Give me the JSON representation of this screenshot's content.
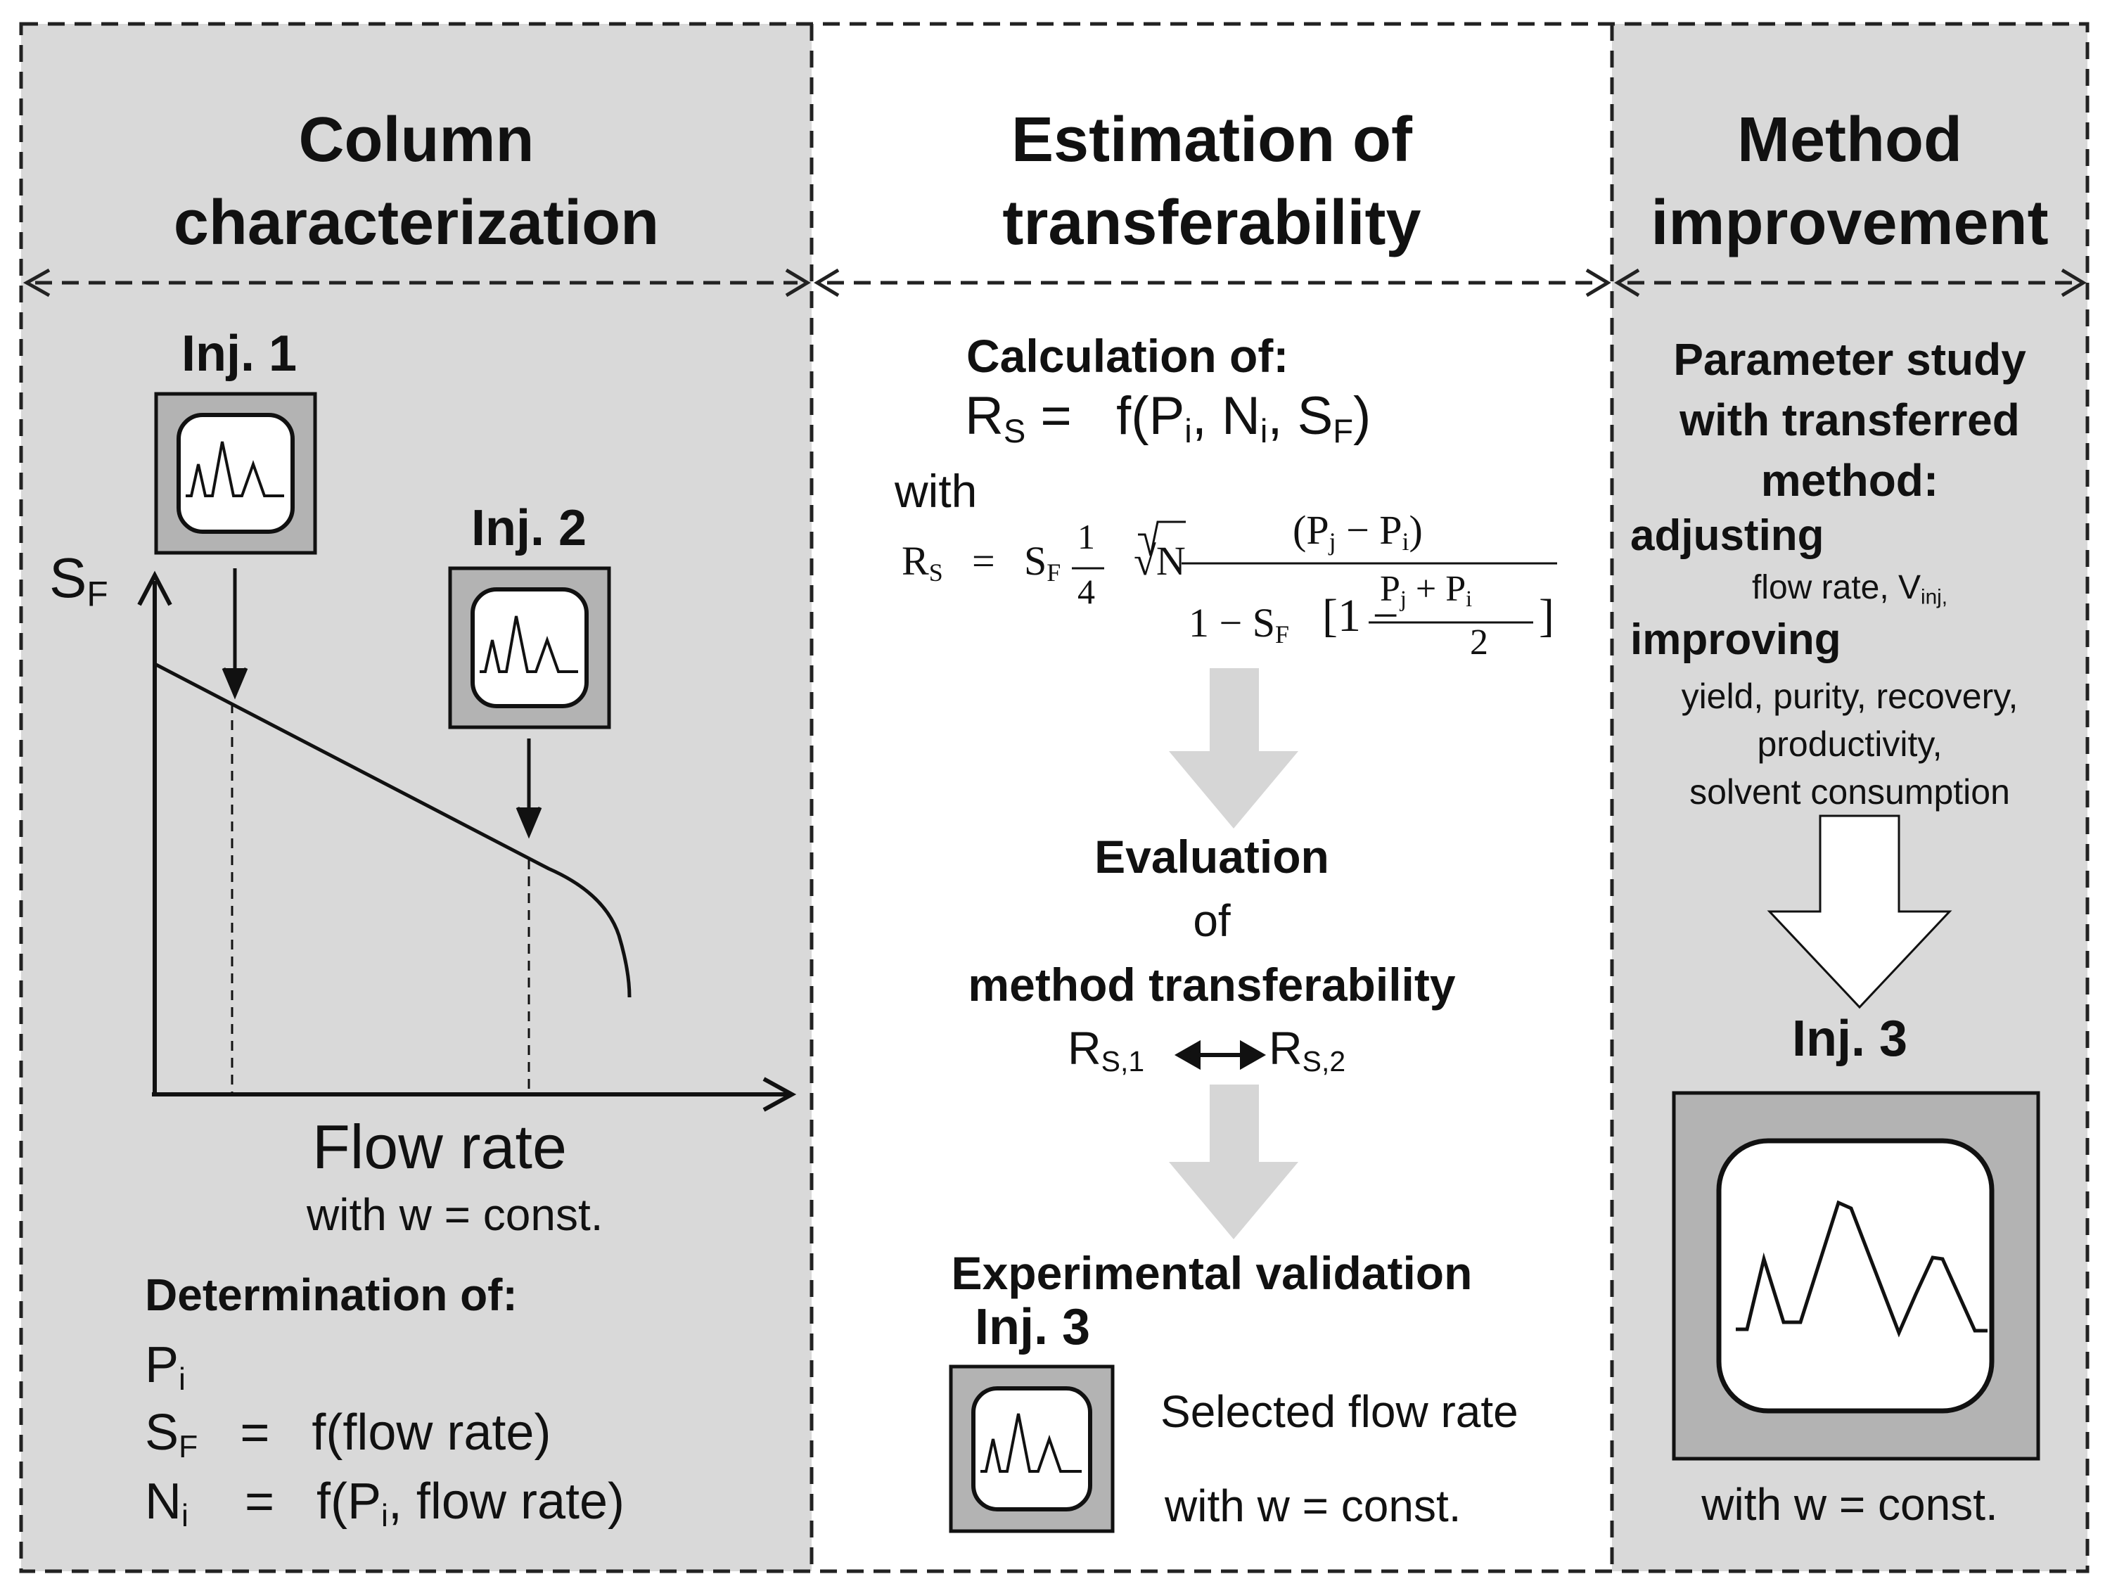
{
  "panels": {
    "column_characterization": {
      "title_line1": "Column",
      "title_line2": "characterization",
      "inj1_label": "Inj. 1",
      "inj2_label": "Inj. 2",
      "y_axis_label": "S",
      "y_axis_sub": "F",
      "x_axis_label": "Flow rate",
      "x_axis_note": "with w = const.",
      "determination_heading": "Determination of:",
      "det_line1_main": "P",
      "det_line1_sub": "i",
      "det_line2_lhs": "S",
      "det_line2_sub": "F",
      "det_line2_rhs": "=   f(flow rate)",
      "det_line3_lhs": "N",
      "det_line3_sub": "i",
      "det_line3_rhs_a": "=   f(P",
      "det_line3_rhs_sub": "i",
      "det_line3_rhs_b": ", flow rate)"
    },
    "estimation": {
      "title_line1": "Estimation of",
      "title_line2": "transferability",
      "calc_heading": "Calculation of:",
      "rs_main": "R",
      "rs_sub": "S",
      "rs_eq": " =   f(P",
      "rs_p_sub": "i",
      "rs_n": ", N",
      "rs_n_sub": "i",
      "rs_s": ", S",
      "rs_s_sub": "F",
      "rs_close": ")",
      "with_word": "with",
      "formula_lhs": "R",
      "formula_lhs_sub": "S",
      "formula_eq": "=",
      "formula_sf": "S",
      "formula_sf_sub": "F",
      "formula_num": "1",
      "formula_den": "4",
      "formula_sqrt": "√N",
      "formula_top": "(P",
      "formula_top_sub_j": "j",
      "formula_top_minus": " − P",
      "formula_top_sub_i": "i",
      "formula_top_close": ")",
      "formula_bottom_a": "1 − S",
      "formula_bottom_sub": "F",
      "formula_bottom_b": "[1 −",
      "formula_inner_top_a": "P",
      "formula_inner_top_sub_j": "j",
      "formula_inner_top_plus": " + P",
      "formula_inner_top_sub_i": "i",
      "formula_inner_den": "2",
      "formula_bottom_close": "]",
      "evaluation_word": "Evaluation",
      "of_word": "of",
      "method_transferability": "method transferability",
      "rs1_main": "R",
      "rs1_sub": "S,1",
      "rs2_main": "R",
      "rs2_sub": "S,2",
      "experimental_validation": "Experimental validation",
      "inj3_label": "Inj. 3",
      "selected_flow_rate": "Selected flow rate",
      "with_w_const": "with w = const."
    },
    "method_improvement": {
      "title_line1": "Method",
      "title_line2": "improvement",
      "param_line1": "Parameter study",
      "param_line2": "with transferred",
      "param_line3": "method:",
      "adjusting": "adjusting",
      "adjust_items": "flow rate, V",
      "adjust_items_sub": "inj,",
      "improving": "improving",
      "improve_line1": "yield, purity, recovery,",
      "improve_line2": "productivity,",
      "improve_line3": "solvent consumption",
      "inj3_label": "Inj. 3",
      "with_w_const": "with w = const."
    }
  },
  "colors": {
    "panel_gray": "#d9d9d9",
    "frame_gray": "#b3b3b3",
    "arrow_gray": "#d6d6d6",
    "ink": "#111111"
  }
}
